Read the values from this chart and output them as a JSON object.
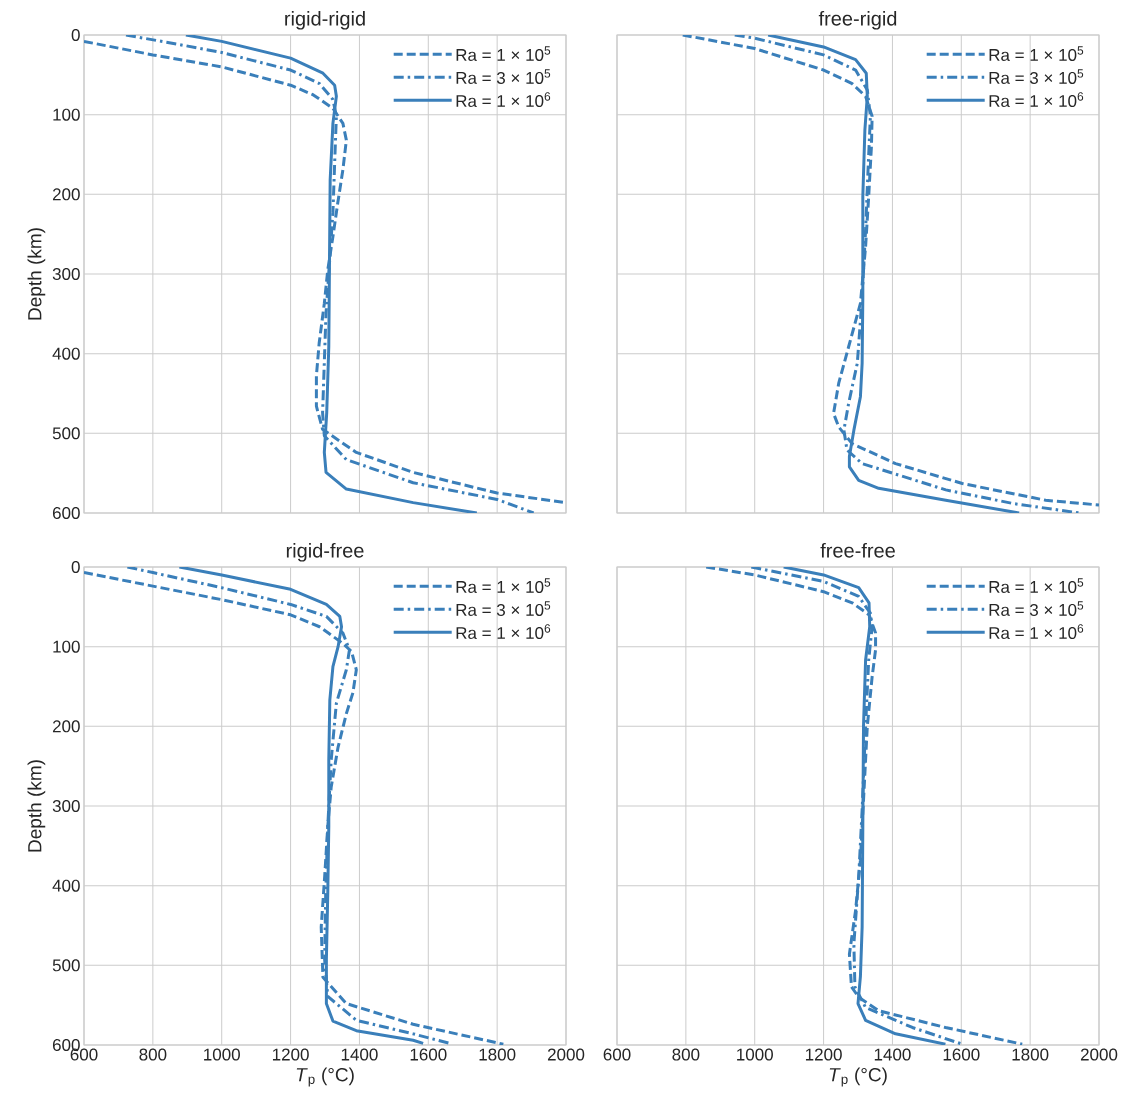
{
  "chart_data": [
    {
      "type": "line",
      "title": "rigid-rigid",
      "ylabel": "Depth (km)",
      "xlim": [
        600,
        2000
      ],
      "ylim": [
        600,
        0
      ],
      "xticks": [
        600,
        800,
        1000,
        1200,
        1400,
        1600,
        1800,
        2000
      ],
      "yticks": [
        0,
        100,
        200,
        300,
        400,
        500,
        600
      ],
      "grid": true,
      "legend": "top right",
      "tick_labels": "y",
      "series": [
        {
          "name": "Ra = 1 × 10$^{5}$",
          "color": "#3a7fba",
          "line_style": "dashed",
          "x": [
            600,
            800,
            1000,
            1200,
            1265,
            1323,
            1352,
            1362,
            1352,
            1337,
            1323,
            1308,
            1298,
            1283,
            1275,
            1275,
            1293,
            1391,
            1556,
            1800,
            2000
          ],
          "values": [
            8,
            25,
            40,
            63,
            75,
            92,
            111,
            132,
            169,
            211,
            253,
            295,
            337,
            387,
            428,
            466,
            495,
            524,
            549,
            575,
            587
          ]
        },
        {
          "name": "Ra = 3 × 10$^{5}$",
          "color": "#3a7fba",
          "line_style": "dashdot",
          "x": [
            722,
            877,
            1000,
            1200,
            1284,
            1323,
            1333,
            1328,
            1323,
            1313,
            1303,
            1298,
            1293,
            1298,
            1362,
            1556,
            1800,
            1906
          ],
          "values": [
            0,
            12,
            22,
            44,
            61,
            81,
            102,
            161,
            223,
            286,
            349,
            411,
            474,
            503,
            533,
            562,
            583,
            600
          ]
        },
        {
          "name": "Ra = 1 × 10$^{6}$",
          "color": "#3a7fba",
          "line_style": "solid",
          "x": [
            896,
            1000,
            1200,
            1294,
            1328,
            1333,
            1323,
            1315,
            1313,
            1311,
            1305,
            1298,
            1303,
            1362,
            1556,
            1741
          ],
          "values": [
            0,
            8,
            29,
            48,
            63,
            77,
            111,
            182,
            286,
            391,
            474,
            524,
            549,
            570,
            587,
            600
          ]
        }
      ]
    },
    {
      "type": "line",
      "title": "free-rigid",
      "xlim": [
        600,
        2000
      ],
      "ylim": [
        600,
        0
      ],
      "xticks": [
        600,
        800,
        1000,
        1200,
        1400,
        1600,
        1800,
        2000
      ],
      "yticks": [
        0,
        100,
        200,
        300,
        400,
        500,
        600
      ],
      "grid": true,
      "legend": "top right",
      "tick_labels": false,
      "series": [
        {
          "name": "Ra = 1 × 10$^{5}$",
          "color": "#3a7fba",
          "line_style": "dashed",
          "x": [
            791,
            1000,
            1200,
            1283,
            1322,
            1341,
            1339,
            1331,
            1322,
            1307,
            1273,
            1244,
            1229,
            1244,
            1283,
            1409,
            1603,
            1845,
            2000
          ],
          "values": [
            0,
            17,
            44,
            61,
            77,
            102,
            140,
            203,
            266,
            337,
            391,
            437,
            475,
            492,
            513,
            538,
            563,
            584,
            590
          ]
        },
        {
          "name": "Ra = 3 × 10$^{5}$",
          "color": "#3a7fba",
          "line_style": "dashdot",
          "x": [
            942,
            1000,
            1200,
            1293,
            1327,
            1336,
            1330,
            1322,
            1312,
            1298,
            1273,
            1259,
            1268,
            1312,
            1555,
            1749,
            1943
          ],
          "values": [
            0,
            4,
            25,
            44,
            69,
            102,
            161,
            245,
            329,
            412,
            462,
            496,
            521,
            538,
            571,
            588,
            600
          ]
        },
        {
          "name": "Ra = 1 × 10$^{6}$",
          "color": "#3a7fba",
          "line_style": "solid",
          "x": [
            1039,
            1200,
            1293,
            1324,
            1327,
            1320,
            1314,
            1314,
            1312,
            1307,
            1288,
            1275,
            1275,
            1302,
            1360,
            1555,
            1768
          ],
          "values": [
            0,
            15,
            31,
            48,
            77,
            119,
            203,
            329,
            412,
            454,
            496,
            529,
            542,
            559,
            569,
            584,
            600
          ]
        }
      ]
    },
    {
      "type": "line",
      "title": "rigid-free",
      "xlabel": "*T*$_{p}$ (°C)",
      "ylabel": "Depth (km)",
      "xlim": [
        600,
        2000
      ],
      "ylim": [
        600,
        0
      ],
      "xticks": [
        600,
        800,
        1000,
        1200,
        1400,
        1600,
        1800,
        2000
      ],
      "yticks": [
        0,
        100,
        200,
        300,
        400,
        500,
        600
      ],
      "grid": true,
      "legend": "top right",
      "series": [
        {
          "name": "Ra = 1 × 10$^{5}$",
          "color": "#3a7fba",
          "line_style": "dashed",
          "x": [
            600,
            800,
            1000,
            1200,
            1284,
            1352,
            1377,
            1391,
            1381,
            1362,
            1338,
            1318,
            1308,
            1299,
            1289,
            1294,
            1362,
            1556,
            1818
          ],
          "values": [
            7,
            24,
            41,
            60,
            75,
            96,
            106,
            129,
            158,
            184,
            226,
            276,
            326,
            389,
            452,
            515,
            548,
            574,
            599
          ]
        },
        {
          "name": "Ra = 3 × 10$^{5}$",
          "color": "#3a7fba",
          "line_style": "dashdot",
          "x": [
            726,
            800,
            1000,
            1200,
            1304,
            1352,
            1371,
            1362,
            1333,
            1318,
            1308,
            1302,
            1299,
            1308,
            1391,
            1556,
            1663
          ],
          "values": [
            0,
            7,
            26,
            47,
            62,
            83,
            104,
            129,
            171,
            242,
            326,
            410,
            493,
            539,
            569,
            586,
            598
          ]
        },
        {
          "name": "Ra = 1 × 10$^{6}$",
          "color": "#3a7fba",
          "line_style": "solid",
          "x": [
            877,
            1000,
            1200,
            1304,
            1343,
            1348,
            1338,
            1323,
            1314,
            1311,
            1311,
            1308,
            1304,
            1304,
            1323,
            1391,
            1556,
            1585
          ],
          "values": [
            0,
            10,
            28,
            47,
            62,
            75,
            100,
            125,
            167,
            242,
            326,
            410,
            493,
            548,
            570,
            582,
            594,
            598
          ]
        }
      ]
    },
    {
      "type": "line",
      "title": "free-free",
      "xlabel": "*T*$_{p}$ (°C)",
      "xlim": [
        600,
        2000
      ],
      "ylim": [
        600,
        0
      ],
      "xticks": [
        600,
        800,
        1000,
        1200,
        1400,
        1600,
        1800,
        2000
      ],
      "yticks": [
        0,
        100,
        200,
        300,
        400,
        500,
        600
      ],
      "grid": true,
      "legend": "top right",
      "tick_labels": "x",
      "series": [
        {
          "name": "Ra = 1 × 10$^{5}$",
          "color": "#3a7fba",
          "line_style": "dashed",
          "x": [
            859,
            1000,
            1200,
            1283,
            1332,
            1351,
            1351,
            1341,
            1327,
            1317,
            1307,
            1293,
            1275,
            1281,
            1302,
            1360,
            1554,
            1777
          ],
          "values": [
            0,
            10,
            31,
            45,
            60,
            83,
            104,
            138,
            200,
            284,
            368,
            431,
            486,
            527,
            540,
            557,
            578,
            599
          ]
        },
        {
          "name": "Ra = 3 × 10$^{5}$",
          "color": "#3a7fba",
          "line_style": "dashdot",
          "x": [
            990,
            1200,
            1302,
            1336,
            1341,
            1331,
            1322,
            1312,
            1302,
            1288,
            1291,
            1322,
            1458,
            1603
          ],
          "values": [
            0,
            18,
            37,
            58,
            75,
            117,
            200,
            305,
            389,
            473,
            527,
            553,
            578,
            599
          ]
        },
        {
          "name": "Ra = 1 × 10$^{6}$",
          "color": "#3a7fba",
          "line_style": "solid",
          "x": [
            1084,
            1200,
            1302,
            1332,
            1334,
            1322,
            1316,
            1314,
            1312,
            1307,
            1300,
            1322,
            1409,
            1554
          ],
          "values": [
            0,
            10,
            26,
            45,
            75,
            117,
            200,
            326,
            452,
            514,
            548,
            569,
            586,
            599
          ]
        }
      ]
    }
  ]
}
